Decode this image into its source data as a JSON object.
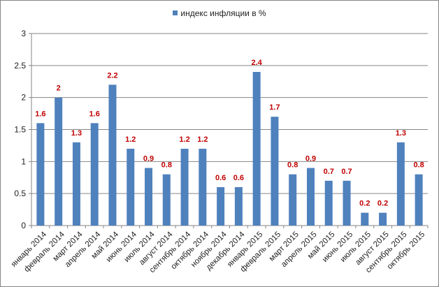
{
  "chart_data": {
    "type": "bar",
    "legend_position": "top",
    "grid": true,
    "ylim": [
      0,
      3
    ],
    "yticks": [
      "0",
      "0.5",
      "1",
      "1.5",
      "2",
      "2.5",
      "3"
    ],
    "categories": [
      "январь 2014",
      "февраль 2014",
      "март 2014",
      "апрель 2014",
      "май 2014",
      "июнь 2014",
      "июль 2014",
      "август 2014",
      "сентябрь 2014",
      "октябрь 2014",
      "ноябрь 2014",
      "декабрь 2014",
      "январь 2015",
      "февраль 2015",
      "март 2015",
      "апрель 2015",
      "май 2015",
      "июнь 2015",
      "июль 2015",
      "август 2015",
      "сентябрь 2015",
      "октябрь 2015"
    ],
    "series": [
      {
        "name": "индекс инфляции в %",
        "color": "#4f81bd",
        "label_color": "#c00000",
        "values": [
          1.6,
          2,
          1.3,
          1.6,
          2.2,
          1.2,
          0.9,
          0.8,
          1.2,
          1.2,
          0.6,
          0.6,
          2.4,
          1.7,
          0.8,
          0.9,
          0.7,
          0.7,
          0.2,
          0.2,
          1.3,
          0.8
        ],
        "labels": [
          "1.6",
          "2",
          "1.3",
          "1.6",
          "2.2",
          "1.2",
          "0.9",
          "0.8",
          "1.2",
          "1.2",
          "0.6",
          "0.6",
          "2.4",
          "1.7",
          "0.8",
          "0.9",
          "0.7",
          "0.7",
          "0.2",
          "0.2",
          "1.3",
          "0.8"
        ]
      }
    ]
  }
}
